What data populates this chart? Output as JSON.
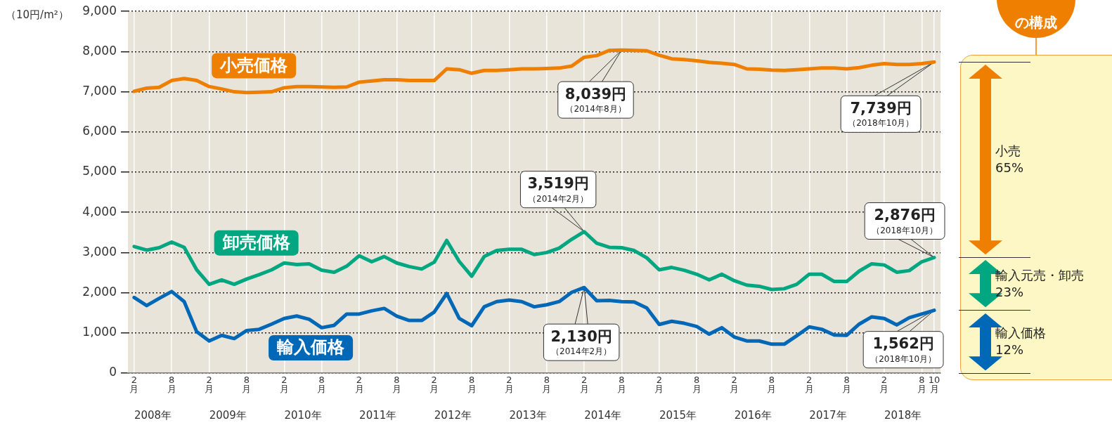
{
  "chart_data": {
    "type": "line",
    "ylabel": "（10円/m²）",
    "x": [
      "2008-02",
      "2008-04",
      "2008-06",
      "2008-08",
      "2008-10",
      "2008-12",
      "2009-02",
      "2009-04",
      "2009-06",
      "2009-08",
      "2009-10",
      "2009-12",
      "2010-02",
      "2010-04",
      "2010-06",
      "2010-08",
      "2010-10",
      "2010-12",
      "2011-02",
      "2011-04",
      "2011-06",
      "2011-08",
      "2011-10",
      "2011-12",
      "2012-02",
      "2012-04",
      "2012-06",
      "2012-08",
      "2012-10",
      "2012-12",
      "2013-02",
      "2013-04",
      "2013-06",
      "2013-08",
      "2013-10",
      "2013-12",
      "2014-02",
      "2014-04",
      "2014-06",
      "2014-08",
      "2014-10",
      "2014-12",
      "2015-02",
      "2015-04",
      "2015-06",
      "2015-08",
      "2015-10",
      "2015-12",
      "2016-02",
      "2016-04",
      "2016-06",
      "2016-08",
      "2016-10",
      "2016-12",
      "2017-02",
      "2017-04",
      "2017-06",
      "2017-08",
      "2017-10",
      "2017-12",
      "2018-02",
      "2018-04",
      "2018-06",
      "2018-08",
      "2018-10"
    ],
    "series": [
      {
        "name": "小売価格",
        "color": "#ee7f00",
        "values": [
          7010,
          7090,
          7110,
          7280,
          7330,
          7280,
          7130,
          7070,
          7000,
          6980,
          6990,
          7000,
          7100,
          7130,
          7130,
          7120,
          7110,
          7120,
          7240,
          7270,
          7300,
          7300,
          7280,
          7280,
          7280,
          7570,
          7550,
          7460,
          7530,
          7530,
          7550,
          7570,
          7570,
          7580,
          7590,
          7640,
          7860,
          7900,
          8030,
          8039,
          8030,
          8020,
          7910,
          7820,
          7800,
          7770,
          7730,
          7710,
          7680,
          7570,
          7560,
          7540,
          7530,
          7550,
          7570,
          7590,
          7590,
          7570,
          7600,
          7660,
          7700,
          7680,
          7680,
          7700,
          7739
        ]
      },
      {
        "name": "卸売価格",
        "color": "#00a780",
        "values": [
          3150,
          3060,
          3120,
          3260,
          3130,
          2570,
          2210,
          2320,
          2210,
          2340,
          2450,
          2570,
          2740,
          2700,
          2720,
          2560,
          2510,
          2660,
          2920,
          2770,
          2900,
          2740,
          2650,
          2590,
          2760,
          3300,
          2780,
          2410,
          2900,
          3050,
          3080,
          3080,
          2950,
          3000,
          3110,
          3330,
          3519,
          3230,
          3130,
          3120,
          3050,
          2870,
          2570,
          2630,
          2560,
          2460,
          2320,
          2460,
          2300,
          2190,
          2160,
          2080,
          2100,
          2210,
          2460,
          2460,
          2280,
          2280,
          2540,
          2720,
          2690,
          2510,
          2550,
          2770,
          2876
        ]
      },
      {
        "name": "輸入価格",
        "color": "#0068b7",
        "values": [
          1880,
          1680,
          1860,
          2030,
          1780,
          1030,
          800,
          940,
          860,
          1060,
          1090,
          1220,
          1360,
          1420,
          1340,
          1130,
          1190,
          1470,
          1470,
          1550,
          1610,
          1420,
          1310,
          1310,
          1520,
          1980,
          1360,
          1180,
          1650,
          1780,
          1820,
          1780,
          1650,
          1700,
          1780,
          2010,
          2130,
          1800,
          1810,
          1780,
          1770,
          1620,
          1210,
          1290,
          1240,
          1160,
          970,
          1130,
          900,
          800,
          800,
          720,
          720,
          930,
          1150,
          1090,
          950,
          940,
          1220,
          1400,
          1360,
          1200,
          1380,
          1470,
          1562
        ]
      }
    ],
    "xlim": [
      "2008-01",
      "2018-11"
    ],
    "xticks": [
      {
        "value": "2008-02",
        "label": "2月"
      },
      {
        "value": "2008-08",
        "label": "8月"
      },
      {
        "value": "2009-02",
        "label": "2月"
      },
      {
        "value": "2009-08",
        "label": "8月"
      },
      {
        "value": "2010-02",
        "label": "2月"
      },
      {
        "value": "2010-08",
        "label": "8月"
      },
      {
        "value": "2011-02",
        "label": "2月"
      },
      {
        "value": "2011-08",
        "label": "8月"
      },
      {
        "value": "2012-02",
        "label": "2月"
      },
      {
        "value": "2012-08",
        "label": "8月"
      },
      {
        "value": "2013-02",
        "label": "2月"
      },
      {
        "value": "2013-08",
        "label": "8月"
      },
      {
        "value": "2014-02",
        "label": "2月"
      },
      {
        "value": "2014-08",
        "label": "8月"
      },
      {
        "value": "2015-02",
        "label": "2月"
      },
      {
        "value": "2015-08",
        "label": "8月"
      },
      {
        "value": "2016-02",
        "label": "2月"
      },
      {
        "value": "2016-08",
        "label": "8月"
      },
      {
        "value": "2017-02",
        "label": "2月"
      },
      {
        "value": "2017-08",
        "label": "8月"
      },
      {
        "value": "2018-02",
        "label": "2月"
      },
      {
        "value": "2018-08",
        "label": "8月"
      },
      {
        "value": "2018-10",
        "label": "10月"
      }
    ],
    "x2lim": [
      "2008-01",
      "2018-11"
    ],
    "x2ticks": [
      {
        "value": "2008-05",
        "label": "2008年"
      },
      {
        "value": "2009-05",
        "label": "2009年"
      },
      {
        "value": "2010-05",
        "label": "2010年"
      },
      {
        "value": "2011-05",
        "label": "2011年"
      },
      {
        "value": "2012-05",
        "label": "2012年"
      },
      {
        "value": "2013-05",
        "label": "2013年"
      },
      {
        "value": "2014-05",
        "label": "2014年"
      },
      {
        "value": "2015-05",
        "label": "2015年"
      },
      {
        "value": "2016-05",
        "label": "2016年"
      },
      {
        "value": "2017-05",
        "label": "2017年"
      },
      {
        "value": "2018-05",
        "label": "2018年"
      }
    ],
    "ylim": [
      0,
      9000
    ],
    "yticks": [
      0,
      {
        "value": 1000,
        "label": "1,000"
      },
      {
        "value": 2000,
        "label": "2,000"
      },
      {
        "value": 3000,
        "label": "3,000"
      },
      {
        "value": 4000,
        "label": "4,000"
      },
      {
        "value": 5000,
        "label": "5,000"
      },
      {
        "value": 6000,
        "label": "6,000"
      },
      {
        "value": 7000,
        "label": "7,000"
      },
      {
        "value": 8000,
        "label": "8,000"
      },
      {
        "value": 9000,
        "label": "9,000"
      }
    ],
    "grid": true,
    "line_style": "solid",
    "marker": "none",
    "annotations": [
      {
        "text": "8,039円",
        "x": "2014-08",
        "y": 8039
      },
      "（2014年8月）",
      {
        "text": "7,739円",
        "x": "2018-10",
        "y": 7739
      },
      "（2018年10月）",
      {
        "text": "3,519円",
        "x": "2014-02",
        "y": 3519
      },
      "（2014年2月）",
      {
        "text": "2,876円",
        "x": "2018-10",
        "y": 2876
      },
      "（2018年10月）",
      {
        "text": "1,562円",
        "x": "2018-10",
        "y": 1562
      },
      "（2018年10月）",
      {
        "text": "2,130円",
        "x": "2014-02",
        "y": 2130
      },
      "（2014年2月）",
      "の構成",
      "小売\n65%",
      "輸入元売・卸売\n23%",
      "輸入価格\n12%"
    ]
  }
}
